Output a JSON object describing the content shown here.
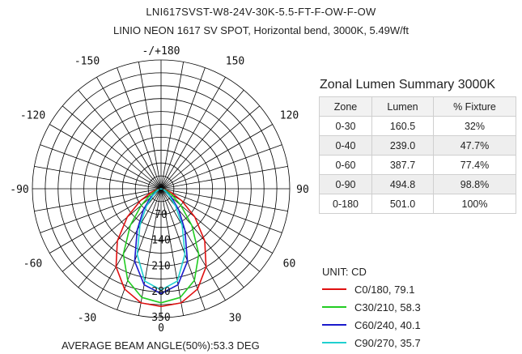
{
  "header": {
    "catalog": "LNI617SVST-W8-24V-30K-5.5-FT-F-OW-F-OW",
    "description": "LINIO NEON 1617 SV SPOT, Horizontal bend, 3000K, 5.49W/ft"
  },
  "chart_data": [
    {
      "type": "polar",
      "angle_labels": [
        "-/+180",
        "150",
        "120",
        "90",
        "60",
        "30",
        "0",
        "-30",
        "-60",
        "-90",
        "-120",
        "-150"
      ],
      "radial_ticks": [
        0,
        70,
        140,
        210,
        280,
        350
      ],
      "radial_max": 350,
      "radial_tick_labels": [
        "0",
        "70",
        "140",
        "210",
        "280",
        "350"
      ],
      "unit": "UNIT: CD",
      "series": [
        {
          "name": "C0/180, 79.1",
          "color": "#e01010",
          "angles": [
            -80,
            -70,
            -60,
            -50,
            -40,
            -30,
            -20,
            -10,
            0,
            10,
            20,
            30,
            40,
            50,
            60,
            70,
            80
          ],
          "values": [
            8,
            28,
            65,
            120,
            185,
            245,
            290,
            315,
            320,
            315,
            290,
            245,
            185,
            120,
            65,
            28,
            8
          ]
        },
        {
          "name": "C30/210, 58.3",
          "color": "#22cc22",
          "angles": [
            -80,
            -70,
            -60,
            -50,
            -40,
            -30,
            -20,
            -10,
            0,
            10,
            20,
            30,
            40,
            50,
            60,
            70,
            80
          ],
          "values": [
            5,
            14,
            34,
            70,
            130,
            205,
            265,
            300,
            310,
            300,
            265,
            205,
            130,
            70,
            34,
            14,
            5
          ]
        },
        {
          "name": "C60/240, 40.1",
          "color": "#1a1acc",
          "angles": [
            -80,
            -70,
            -60,
            -50,
            -40,
            -30,
            -20,
            -10,
            0,
            10,
            20,
            30,
            40,
            50,
            60,
            70,
            80
          ],
          "values": [
            3,
            8,
            18,
            38,
            75,
            130,
            210,
            265,
            285,
            265,
            210,
            130,
            75,
            38,
            18,
            8,
            3
          ]
        },
        {
          "name": "C90/270, 35.7",
          "color": "#20d0d0",
          "angles": [
            -80,
            -70,
            -60,
            -50,
            -40,
            -30,
            -20,
            -10,
            0,
            10,
            20,
            30,
            40,
            50,
            60,
            70,
            80
          ],
          "values": [
            2,
            6,
            14,
            30,
            62,
            115,
            190,
            255,
            275,
            255,
            190,
            115,
            62,
            30,
            14,
            6,
            2
          ]
        }
      ]
    },
    {
      "type": "table",
      "title": "Zonal Lumen Summary 3000K",
      "columns": [
        "Zone",
        "Lumen",
        "% Fixture"
      ],
      "rows": [
        [
          "0-30",
          "160.5",
          "32%"
        ],
        [
          "0-40",
          "239.0",
          "47.7%"
        ],
        [
          "0-60",
          "387.7",
          "77.4%"
        ],
        [
          "0-90",
          "494.8",
          "98.8%"
        ],
        [
          "0-180",
          "501.0",
          "100%"
        ]
      ]
    }
  ],
  "beam_angle": "AVERAGE BEAM ANGLE(50%):53.3 DEG"
}
